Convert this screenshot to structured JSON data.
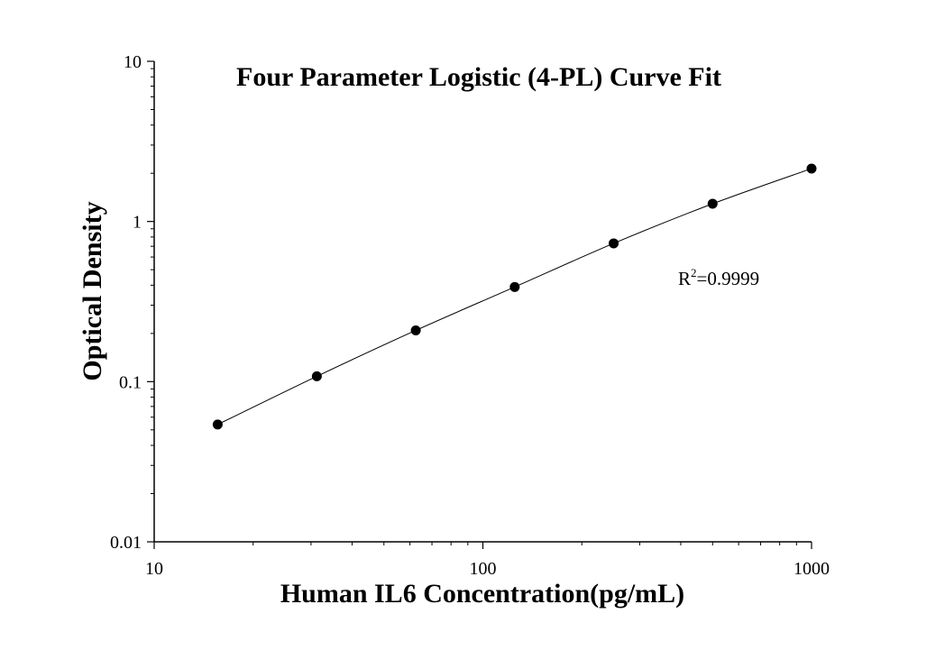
{
  "chart_data": {
    "type": "scatter",
    "title": "Four Parameter Logistic (4-PL) Curve Fit",
    "xlabel": "Human IL6 Concentration(pg/mL)",
    "ylabel": "Optical Density",
    "x_scale": "log",
    "y_scale": "log",
    "xlim": [
      10,
      1000
    ],
    "ylim": [
      0.01,
      10
    ],
    "x_ticks": [
      "10",
      "100",
      "1000"
    ],
    "y_ticks": [
      "0.01",
      "0.1",
      "1",
      "10"
    ],
    "grid": false,
    "series": [
      {
        "x": [
          15.6,
          31.25,
          62.5,
          125,
          250,
          500,
          1000
        ],
        "y": [
          0.054,
          0.108,
          0.209,
          0.39,
          0.73,
          1.29,
          2.14
        ]
      }
    ],
    "fit_curve": true,
    "annotation": {
      "prefix": "R",
      "superscript": "2",
      "text": "=0.9999"
    }
  }
}
